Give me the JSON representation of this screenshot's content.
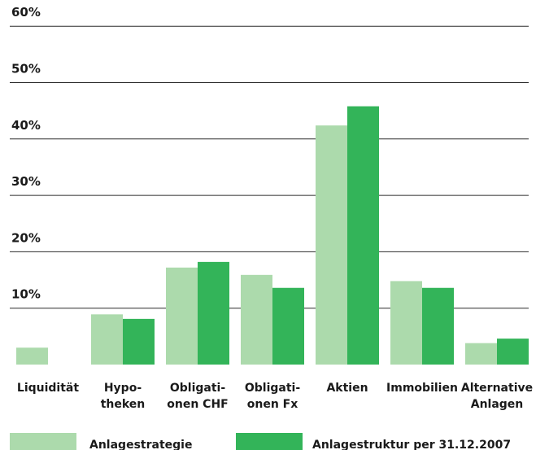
{
  "chart_data": {
    "type": "bar",
    "title": "",
    "xlabel": "",
    "ylabel": "",
    "ylim": [
      0,
      60
    ],
    "yticks": [
      10,
      20,
      30,
      40,
      50,
      60
    ],
    "ytick_labels": [
      "10%",
      "20%",
      "30%",
      "40%",
      "50%",
      "60%"
    ],
    "grid": true,
    "legend_position": "bottom",
    "categories": [
      [
        "Liquidität"
      ],
      [
        "Hypo-",
        "theken"
      ],
      [
        "Obligati-",
        "onen CHF"
      ],
      [
        "Obligati-",
        "onen Fx"
      ],
      [
        "Aktien"
      ],
      [
        "Immobilien"
      ],
      [
        "Alternative",
        "Anlagen"
      ]
    ],
    "series": [
      {
        "name": "Anlagestrategie",
        "color": "#acdaac",
        "values": [
          3.0,
          8.9,
          17.2,
          15.9,
          42.4,
          14.8,
          3.8
        ]
      },
      {
        "name": "Anlagestruktur per 31.12.2007",
        "color": "#33b459",
        "values": [
          0,
          8.1,
          18.2,
          13.6,
          45.8,
          13.6,
          4.6
        ]
      }
    ]
  }
}
